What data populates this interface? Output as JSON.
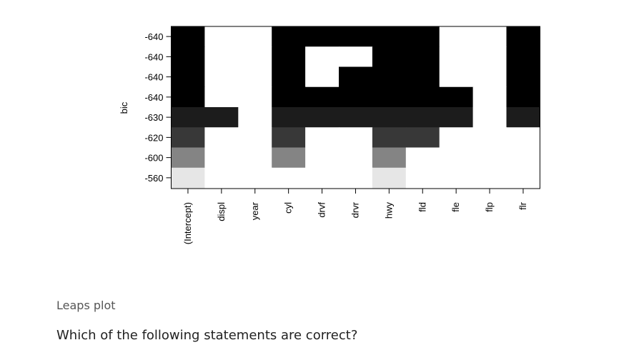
{
  "caption": "Leaps plot",
  "question": "Which of the following statements are correct?",
  "chart_data": {
    "type": "heatmap",
    "title": "",
    "xlabel": "",
    "ylabel": "bic",
    "x": [
      "(Intercept)",
      "displ",
      "year",
      "cyl",
      "drvf",
      "drvr",
      "hwy",
      "fld",
      "fle",
      "flp",
      "flr"
    ],
    "rows": [
      "-640",
      "-640",
      "-640",
      "-640",
      "-630",
      "-620",
      "-600",
      "-560"
    ],
    "cells": [
      [
        1,
        0,
        0,
        1,
        1,
        1,
        1,
        1,
        0,
        0,
        1
      ],
      [
        1,
        0,
        0,
        1,
        0,
        0,
        1,
        1,
        0,
        0,
        1
      ],
      [
        1,
        0,
        0,
        1,
        0,
        1,
        1,
        1,
        0,
        0,
        1
      ],
      [
        1,
        0,
        0,
        1,
        1,
        1,
        1,
        1,
        1,
        0,
        1
      ],
      [
        1,
        1,
        0,
        1,
        1,
        1,
        1,
        1,
        1,
        0,
        1
      ],
      [
        1,
        0,
        0,
        1,
        0,
        0,
        1,
        1,
        0,
        0,
        0
      ],
      [
        1,
        0,
        0,
        1,
        0,
        0,
        1,
        0,
        0,
        0,
        0
      ],
      [
        1,
        0,
        0,
        0,
        0,
        0,
        1,
        0,
        0,
        0,
        0
      ]
    ],
    "row_colors": [
      "#000000",
      "#000000",
      "#000000",
      "#000000",
      "#1c1c1c",
      "#383838",
      "#848484",
      "#e6e6e6"
    ],
    "grid": false,
    "legend": "none"
  }
}
